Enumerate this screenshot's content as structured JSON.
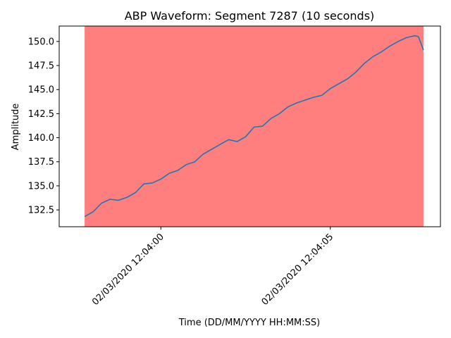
{
  "chart_data": {
    "type": "line",
    "title": "ABP Waveform: Segment 7287 (10 seconds)",
    "xlabel": "Time (DD/MM/YYYY HH:MM:SS)",
    "ylabel": "Amplitude",
    "ylim": [
      130.75,
      151.6
    ],
    "yticks": [
      132.5,
      135.0,
      137.5,
      140.0,
      142.5,
      145.0,
      147.5,
      150.0
    ],
    "ytick_labels": [
      "132.5",
      "135.0",
      "137.5",
      "140.0",
      "142.5",
      "145.0",
      "147.5",
      "150.0"
    ],
    "xticks": [
      {
        "t": "02/03/2020 12:04:00",
        "offset_s": 0
      },
      {
        "t": "02/03/2020 12:04:05",
        "offset_s": 5
      }
    ],
    "xlim_offset_s": [
      -3.0,
      8.25
    ],
    "series_color": "#1f77b4",
    "shaded_region": {
      "start_offset_s": -2.25,
      "end_offset_s": 7.75,
      "color": "#ff0000",
      "alpha": 0.5
    },
    "series": [
      {
        "offset_s": [
          -2.25,
          -2.0,
          -1.75,
          -1.5,
          -1.25,
          -1.0,
          -0.75,
          -0.5,
          -0.25,
          0.0,
          0.25,
          0.5,
          0.75,
          1.0,
          1.25,
          1.5,
          1.75,
          2.0,
          2.25,
          2.5,
          2.75,
          3.0,
          3.25,
          3.5,
          3.75,
          4.0,
          4.25,
          4.5,
          4.75,
          5.0,
          5.25,
          5.5,
          5.75,
          6.0,
          6.25,
          6.5,
          6.75,
          7.0,
          7.25,
          7.5,
          7.6,
          7.75
        ],
        "values": [
          131.8,
          132.3,
          133.2,
          133.6,
          133.5,
          133.8,
          134.3,
          135.2,
          135.3,
          135.7,
          136.3,
          136.6,
          137.2,
          137.5,
          138.3,
          138.8,
          139.3,
          139.8,
          139.6,
          140.1,
          141.1,
          141.2,
          142.0,
          142.5,
          143.2,
          143.6,
          143.9,
          144.2,
          144.4,
          145.1,
          145.6,
          146.1,
          146.8,
          147.7,
          148.4,
          148.9,
          149.5,
          150.0,
          150.4,
          150.6,
          150.5,
          149.1
        ]
      }
    ]
  }
}
